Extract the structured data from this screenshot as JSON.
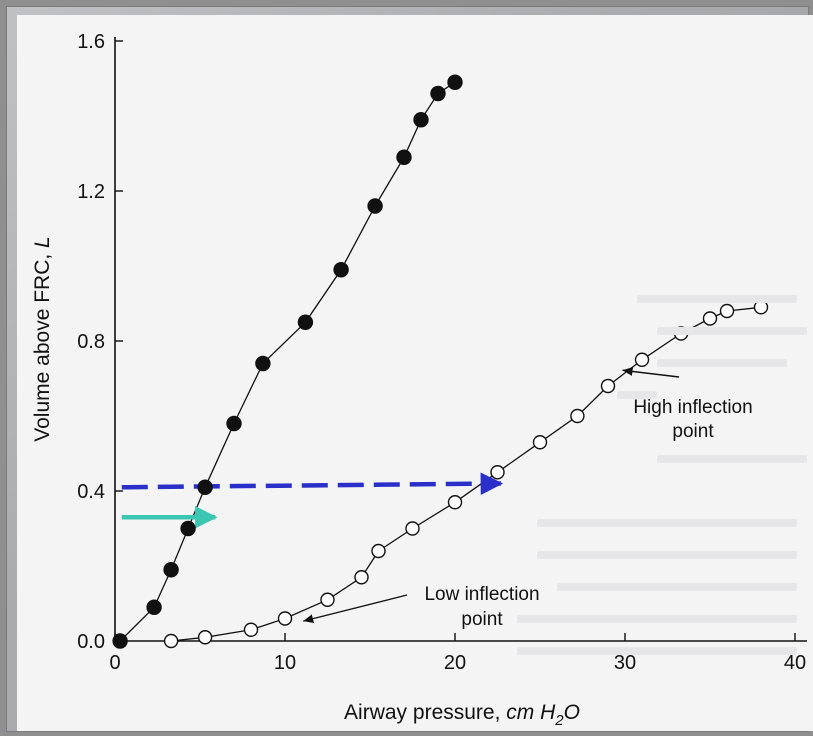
{
  "chart_data": {
    "type": "scatter",
    "title": "",
    "xlabel": "Airway pressure, cm H2O",
    "xlabel_parts": {
      "main": "Airway pressure, ",
      "unit": "cm H",
      "sub": "2",
      "tail": "O"
    },
    "ylabel": "Volume above FRC, L",
    "ylabel_parts": {
      "main": "Volume above FRC, ",
      "unit": "L"
    },
    "xlim": [
      0,
      40
    ],
    "ylim": [
      0,
      1.6
    ],
    "x_ticks": [
      0,
      10,
      20,
      30,
      40
    ],
    "x_tick_labels": [
      "0",
      "10",
      "20",
      "30",
      "40"
    ],
    "y_ticks": [
      0,
      0.4,
      0.8,
      1.2,
      1.6
    ],
    "y_tick_labels": [
      "0.0",
      "0.4",
      "0.8",
      "1.2",
      "1.6"
    ],
    "grid": false,
    "series": [
      {
        "marker": "filled-circle",
        "color": "#111111",
        "points": [
          [
            0.3,
            0.0
          ],
          [
            2.3,
            0.09
          ],
          [
            3.3,
            0.19
          ],
          [
            4.3,
            0.3
          ],
          [
            5.3,
            0.41
          ],
          [
            7.0,
            0.58
          ],
          [
            8.7,
            0.74
          ],
          [
            11.2,
            0.85
          ],
          [
            13.3,
            0.99
          ],
          [
            15.3,
            1.16
          ],
          [
            17.0,
            1.29
          ],
          [
            18.0,
            1.39
          ],
          [
            19.0,
            1.46
          ],
          [
            20.0,
            1.49
          ]
        ]
      },
      {
        "marker": "open-circle",
        "color": "#111111",
        "points": [
          [
            3.3,
            0.0
          ],
          [
            5.3,
            0.01
          ],
          [
            8.0,
            0.03
          ],
          [
            10.0,
            0.06
          ],
          [
            12.5,
            0.11
          ],
          [
            14.5,
            0.17
          ],
          [
            15.5,
            0.24
          ],
          [
            17.5,
            0.3
          ],
          [
            20.0,
            0.37
          ],
          [
            22.5,
            0.45
          ],
          [
            25.0,
            0.53
          ],
          [
            27.2,
            0.6
          ],
          [
            29.0,
            0.68
          ],
          [
            31.0,
            0.75
          ],
          [
            33.3,
            0.82
          ],
          [
            35.0,
            0.86
          ],
          [
            36.0,
            0.88
          ],
          [
            38.0,
            0.89
          ]
        ]
      }
    ],
    "annotations": [
      {
        "line1": "High inflection",
        "line2": "point",
        "arrow_to": [
          29.5,
          0.73
        ]
      },
      {
        "line1": "Low inflection",
        "line2": "point",
        "arrow_to": [
          10.6,
          0.085
        ]
      }
    ],
    "reference_arrows": [
      {
        "style": "dashed",
        "color": "#2a2fc9",
        "from": [
          0.4,
          0.41
        ],
        "to": [
          22.7,
          0.42
        ]
      },
      {
        "style": "solid",
        "color": "#3ac6b1",
        "from": [
          0.4,
          0.33
        ],
        "to": [
          5.9,
          0.33
        ]
      }
    ]
  }
}
